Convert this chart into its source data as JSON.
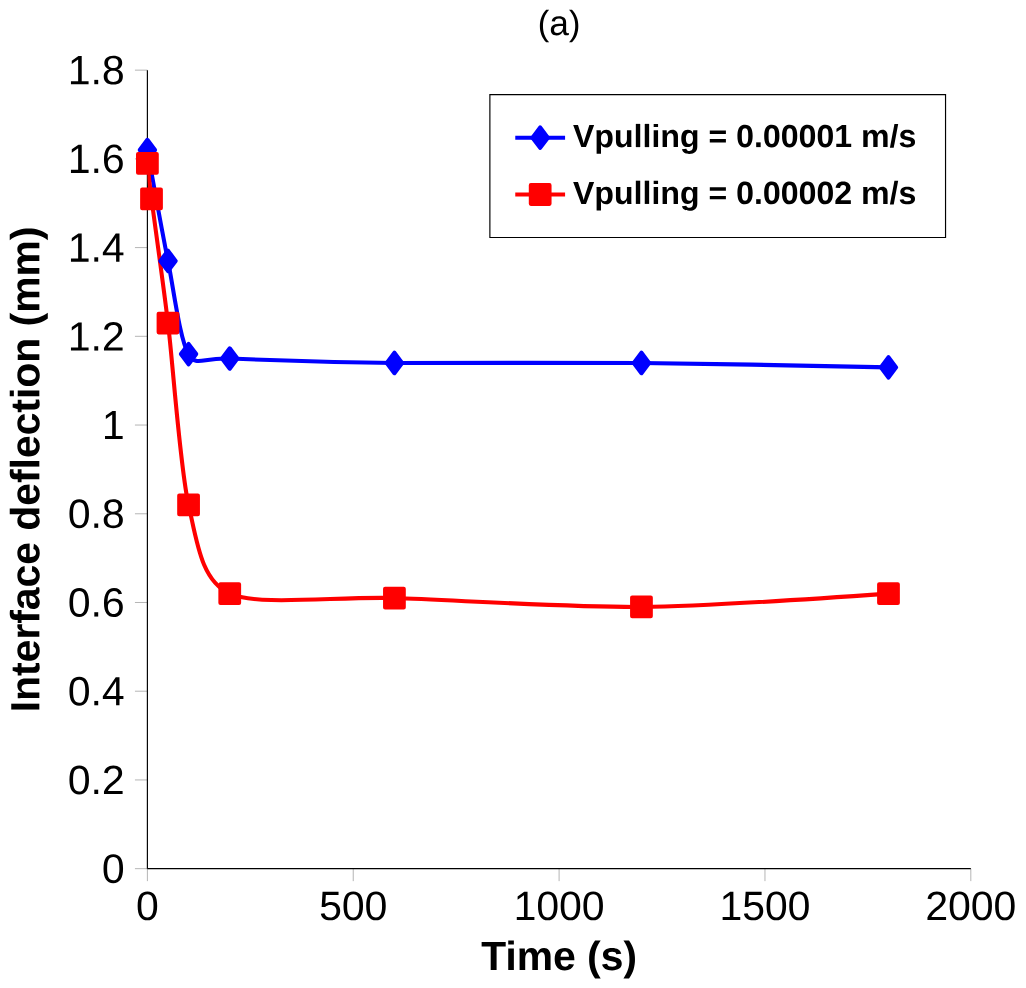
{
  "chart_data": {
    "type": "line",
    "title": "(a)",
    "xlabel": "Time (s)",
    "ylabel": "Interface deflection (mm)",
    "xlim": [
      0,
      2000
    ],
    "xticks": [
      0,
      500,
      1000,
      1500,
      2000
    ],
    "ylim": [
      0,
      1.8
    ],
    "yticks": [
      0,
      0.2,
      0.4,
      0.6,
      0.8,
      1,
      1.2,
      1.4,
      1.6,
      1.8
    ],
    "grid": false,
    "legend": "top right",
    "series": [
      {
        "name": "Vpulling = 0.00001 m/s",
        "color": "#0000ff",
        "marker": "diamond",
        "x": [
          0,
          50,
          100,
          200,
          600,
          1200,
          1800
        ],
        "values": [
          1.62,
          1.37,
          1.16,
          1.15,
          1.14,
          1.14,
          1.13
        ]
      },
      {
        "name": "Vpulling = 0.00002 m/s",
        "color": "#ff0000",
        "marker": "square",
        "x": [
          0,
          10,
          50,
          100,
          200,
          600,
          1200,
          1800
        ],
        "values": [
          1.59,
          1.51,
          1.23,
          0.82,
          0.62,
          0.61,
          0.59,
          0.62
        ]
      }
    ]
  }
}
